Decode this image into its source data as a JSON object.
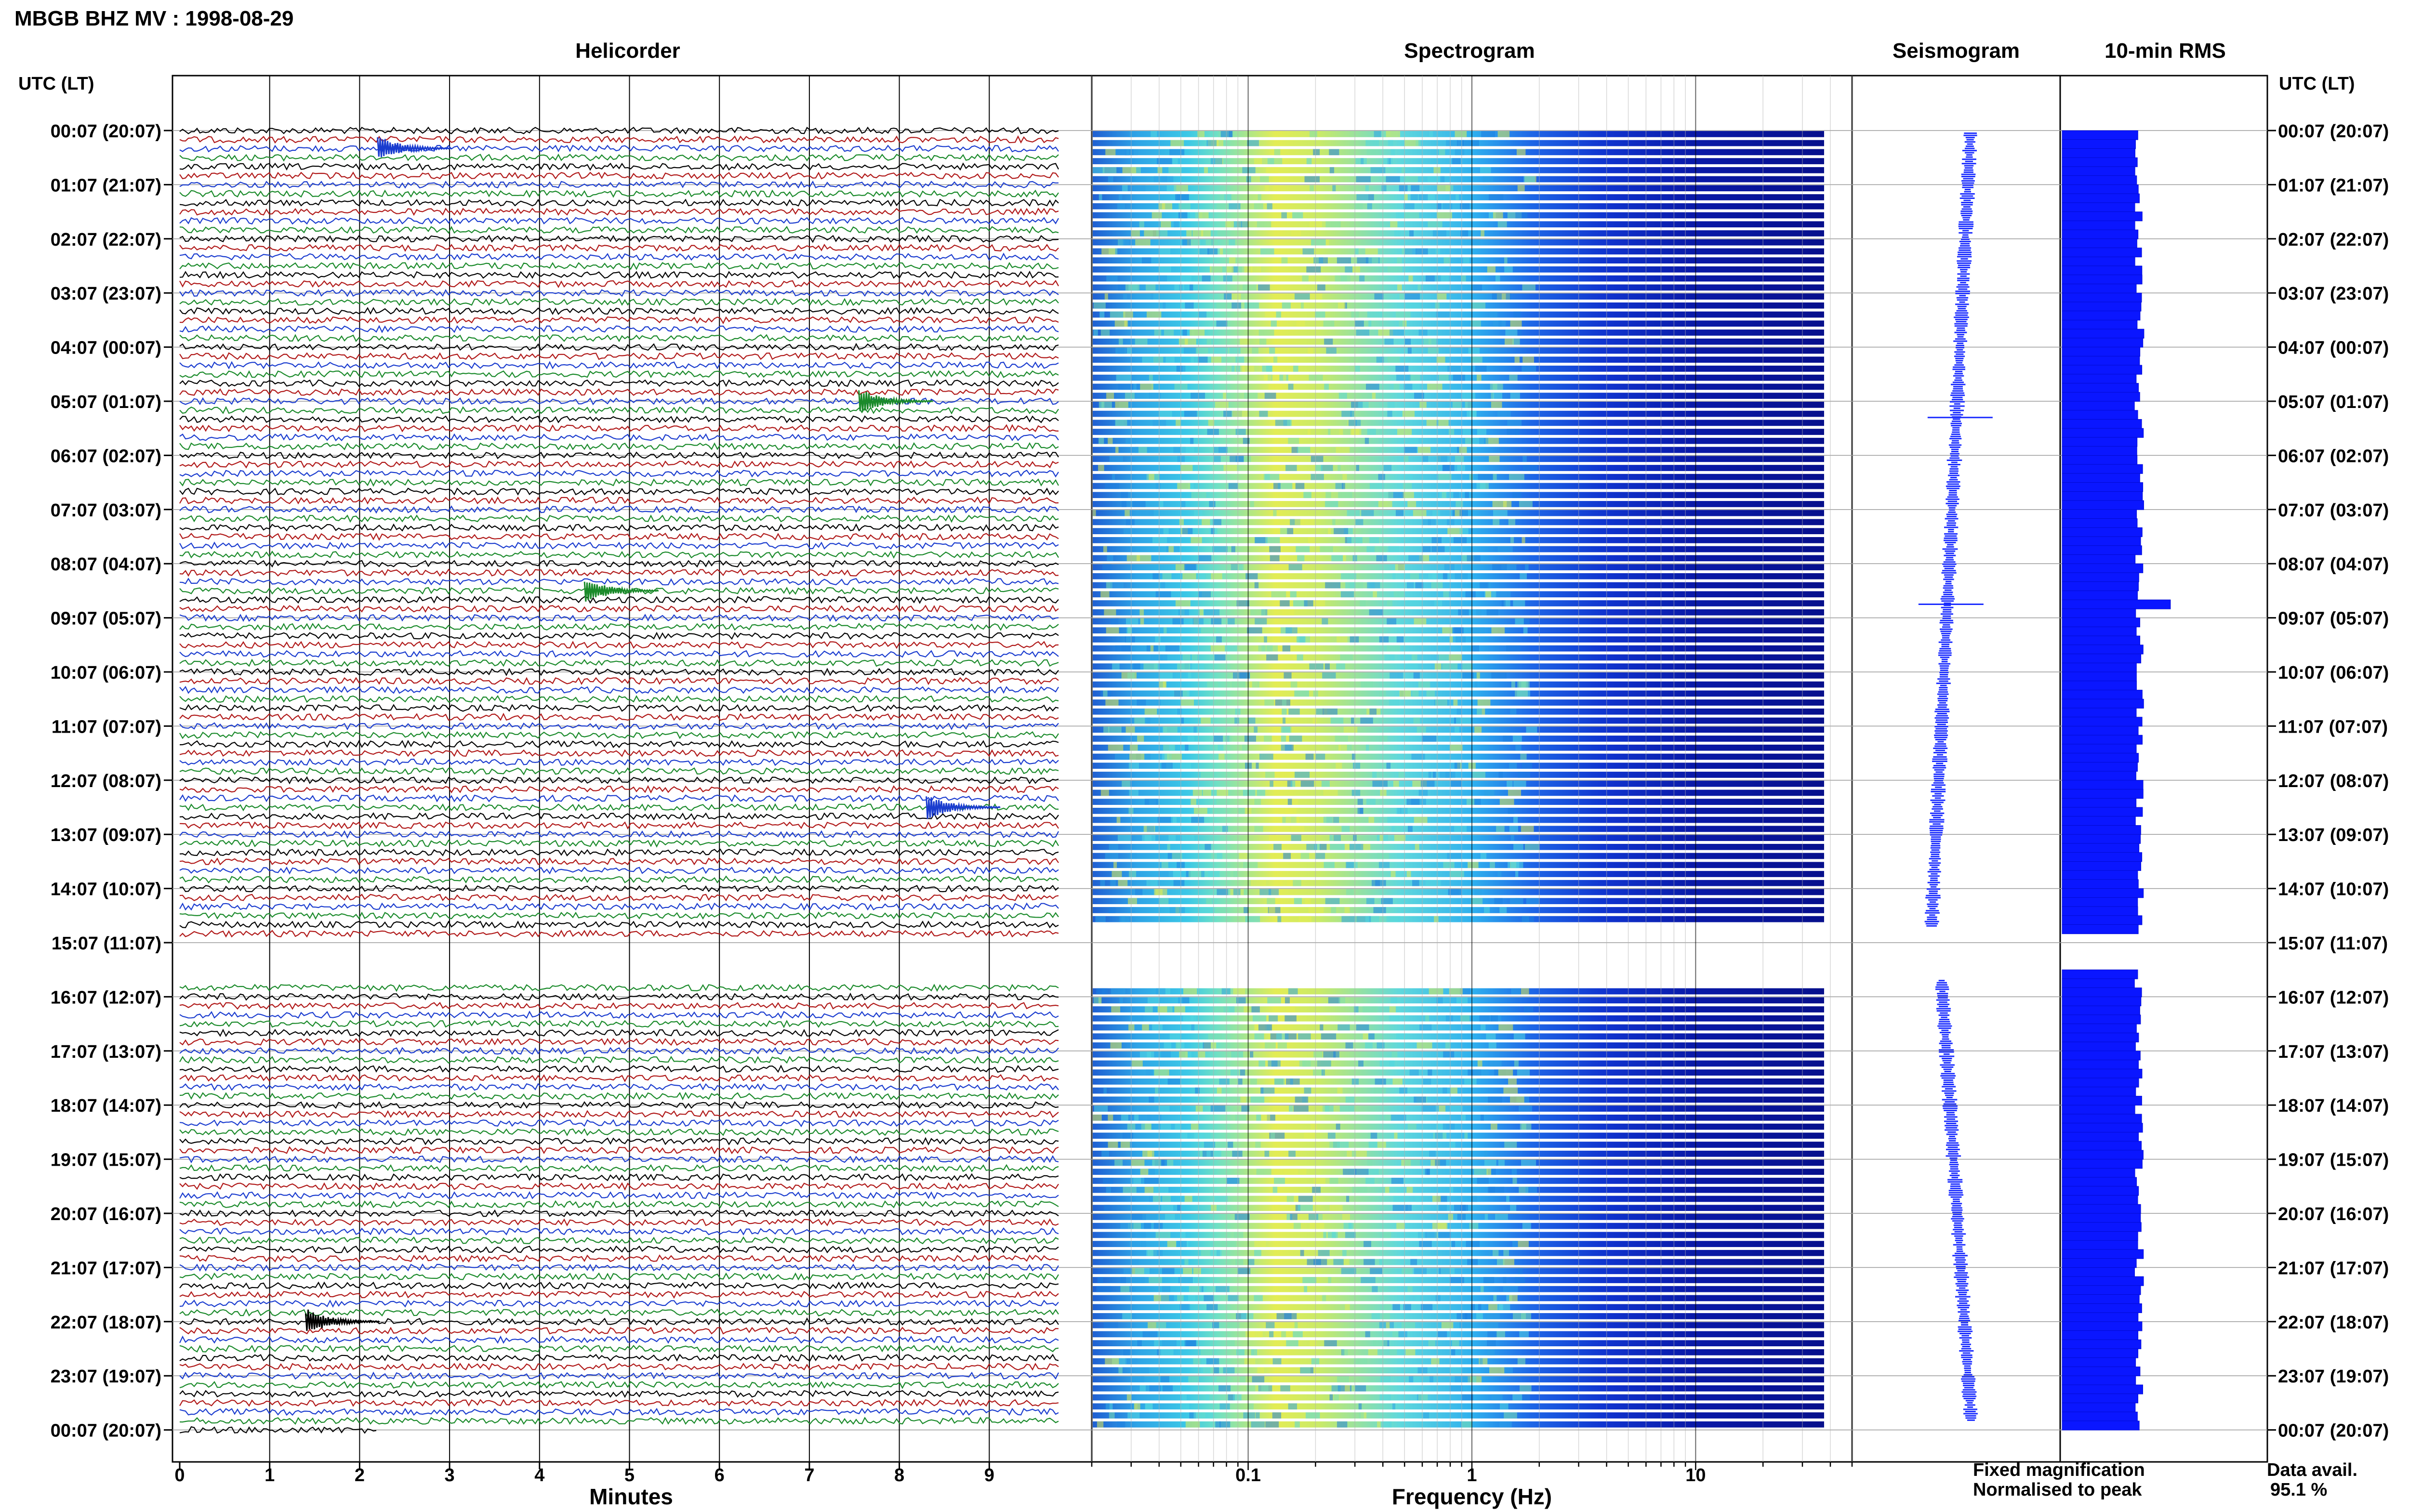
{
  "figure_title": "MBGB BHZ MV : 1998-08-29",
  "panels": {
    "helicorder": "Helicorder",
    "spectrogram": "Spectrogram",
    "seismogram": "Seismogram",
    "rms": "10-min RMS"
  },
  "axis": {
    "left_header": "UTC (LT)",
    "right_header": "UTC (LT)",
    "minutes_label": "Minutes",
    "frequency_label": "Frequency (Hz)"
  },
  "legend": {
    "fixed": "Fixed magnification",
    "normalised": "Normalised to peak",
    "fixed_color": "#1010ff",
    "normalised_color": "#ee1010"
  },
  "data_availability": {
    "label": "Data avail.",
    "value": "95.1 %"
  },
  "colors": {
    "trace_cycle": [
      "#000000",
      "#b01818",
      "#1a3ccf",
      "#1a8a2a"
    ],
    "rms_bar": "#0a16ff",
    "seismogram": "#1a2cff"
  },
  "chart_data": [
    {
      "type": "line",
      "name": "helicorder",
      "title": "Helicorder",
      "xlabel": "Minutes",
      "xlim": [
        0,
        10
      ],
      "x_ticks": [
        "0",
        "1",
        "2",
        "3",
        "4",
        "5",
        "6",
        "7",
        "8",
        "9"
      ],
      "y_ticks_left": [
        "00:07 (20:07)",
        "01:07 (21:07)",
        "02:07 (22:07)",
        "03:07 (23:07)",
        "04:07 (00:07)",
        "05:07 (01:07)",
        "06:07 (02:07)",
        "07:07 (03:07)",
        "08:07 (04:07)",
        "09:07 (05:07)",
        "10:07 (06:07)",
        "11:07 (07:07)",
        "12:07 (08:07)",
        "13:07 (09:07)",
        "14:07 (10:07)",
        "15:07 (11:07)",
        "16:07 (12:07)",
        "17:07 (13:07)",
        "18:07 (14:07)",
        "19:07 (15:07)",
        "20:07 (16:07)",
        "21:07 (17:07)",
        "22:07 (18:07)",
        "23:07 (19:07)",
        "00:07 (20:07)"
      ],
      "y_ticks_right": [
        "00:07 (20:07)",
        "01:07 (21:07)",
        "02:07 (22:07)",
        "03:07 (23:07)",
        "04:07 (00:07)",
        "05:07 (01:07)",
        "06:07 (02:07)",
        "07:07 (03:07)",
        "08:07 (04:07)",
        "09:07 (05:07)",
        "10:07 (06:07)",
        "11:07 (07:07)",
        "12:07 (08:07)",
        "13:07 (09:07)",
        "14:07 (10:07)",
        "15:07 (11:07)",
        "16:07 (12:07)",
        "17:07 (13:07)",
        "18:07 (14:07)",
        "19:07 (15:07)",
        "20:07 (16:07)",
        "21:07 (17:07)",
        "22:07 (18:07)",
        "23:07 (19:07)",
        "00:07 (20:07)"
      ],
      "traces_per_hour": 6,
      "data_gap_hours": [
        15.0,
        15.75
      ],
      "events": [
        {
          "hour": 0.33,
          "minute": 2.2,
          "color": "#1a3ccf"
        },
        {
          "hour": 5.0,
          "minute": 7.55,
          "color": "#1a8a2a"
        },
        {
          "hour": 8.5,
          "minute": 4.5,
          "color": "#1a8a2a"
        },
        {
          "hour": 12.5,
          "minute": 8.3,
          "color": "#1a3ccf"
        },
        {
          "hour": 22.0,
          "minute": 1.4,
          "color": "#000000"
        }
      ]
    },
    {
      "type": "heatmap",
      "name": "spectrogram",
      "title": "Spectrogram",
      "xlabel": "Frequency (Hz)",
      "x_scale": "log",
      "xlim": [
        0.02,
        50
      ],
      "x_ticks": [
        "0.1",
        "1",
        "10"
      ],
      "data_gap_hours": [
        14.65,
        15.75
      ]
    },
    {
      "type": "line",
      "name": "seismogram",
      "title": "Seismogram",
      "spikes_hours": [
        5.3,
        8.75
      ]
    },
    {
      "type": "bar",
      "name": "rms",
      "title": "10-min RMS",
      "gap_hours": [
        14.75,
        15.5
      ],
      "spike_hours": [
        8.65
      ]
    }
  ]
}
